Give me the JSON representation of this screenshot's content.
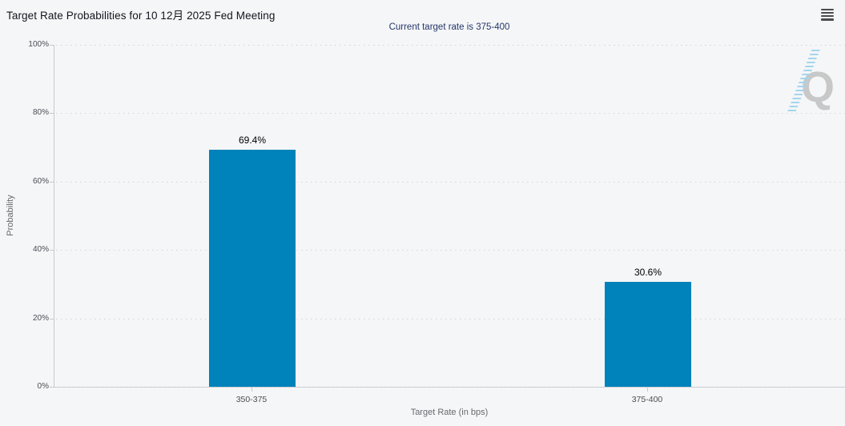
{
  "header": {
    "title": "Target Rate Probabilities for 10 12月 2025 Fed Meeting",
    "subtitle": "Current target rate is 375-400",
    "menu_icon": "hamburger-menu-icon"
  },
  "chart_data": {
    "type": "bar",
    "title": "Target Rate Probabilities for 10 12月 2025 Fed Meeting",
    "subtitle": "Current target rate is 375-400",
    "categories": [
      "350-375",
      "375-400"
    ],
    "values": [
      69.4,
      30.6
    ],
    "value_labels": [
      "69.4%",
      "30.6%"
    ],
    "xlabel": "Target Rate (in bps)",
    "ylabel": "Probability",
    "ylim": [
      0,
      100
    ],
    "yticks": [
      "100%",
      "80%",
      "60%",
      "40%",
      "20%",
      "0%"
    ],
    "grid": "dotted-horizontal",
    "legend": "none",
    "bar_color": "#0082ba"
  },
  "watermark": {
    "letter": "Q"
  },
  "colors": {
    "background": "#f5f6f7",
    "bar": "#0082ba",
    "title": "#14151e",
    "subtitle": "#24366b",
    "axis_line": "#c6c9ce",
    "gridline": "#d5d5da",
    "tick_label": "#4c4c55",
    "axis_title": "#686870",
    "menu_icon": "#4c4c4c",
    "watermark_gray": "#c8c8c8",
    "watermark_blue": "#a5d5ef"
  }
}
